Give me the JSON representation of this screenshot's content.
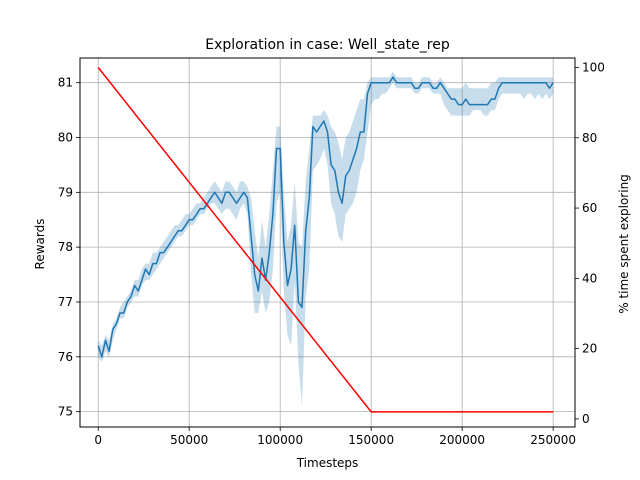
{
  "chart_data": {
    "type": "line",
    "title": "Exploration in case: Well_state_rep",
    "xlabel": "Timesteps",
    "ylabel": "Rewards",
    "y2label": "% time spent exploring",
    "xlim": [
      -10000,
      262000
    ],
    "ylim": [
      74.72,
      81.45
    ],
    "y2lim": [
      -2.3,
      102.7
    ],
    "x_ticks": [
      0,
      50000,
      100000,
      150000,
      200000,
      250000
    ],
    "x_tick_labels": [
      "0",
      "50000",
      "100000",
      "150000",
      "200000",
      "250000"
    ],
    "y_ticks": [
      75,
      76,
      77,
      78,
      79,
      80,
      81
    ],
    "y_tick_labels": [
      "75",
      "76",
      "77",
      "78",
      "79",
      "80",
      "81"
    ],
    "y2_ticks": [
      0,
      20,
      40,
      60,
      80,
      100
    ],
    "y2_tick_labels": [
      "0",
      "20",
      "40",
      "60",
      "80",
      "100"
    ],
    "grid": true,
    "series": [
      {
        "axis": "left",
        "color": "#1f77b4",
        "band_color": "#1f77b4",
        "x": [
          0,
          2000,
          4000,
          6000,
          8000,
          10000,
          12000,
          14000,
          16000,
          18000,
          20000,
          22000,
          24000,
          26000,
          28000,
          30000,
          32000,
          34000,
          36000,
          38000,
          40000,
          42000,
          44000,
          46000,
          48000,
          50000,
          52000,
          54000,
          56000,
          58000,
          60000,
          62000,
          64000,
          66000,
          68000,
          70000,
          72000,
          74000,
          76000,
          78000,
          80000,
          82000,
          84000,
          86000,
          88000,
          90000,
          92000,
          94000,
          96000,
          98000,
          100000,
          102000,
          104000,
          106000,
          108000,
          110000,
          112000,
          114000,
          116000,
          118000,
          120000,
          122000,
          124000,
          126000,
          128000,
          130000,
          132000,
          134000,
          136000,
          138000,
          140000,
          142000,
          144000,
          146000,
          148000,
          150000,
          152000,
          154000,
          156000,
          158000,
          160000,
          162000,
          164000,
          166000,
          168000,
          170000,
          172000,
          174000,
          176000,
          178000,
          180000,
          182000,
          184000,
          186000,
          188000,
          190000,
          192000,
          194000,
          196000,
          198000,
          200000,
          202000,
          204000,
          206000,
          208000,
          210000,
          212000,
          214000,
          216000,
          218000,
          220000,
          222000,
          224000,
          226000,
          228000,
          230000,
          232000,
          234000,
          236000,
          238000,
          240000,
          242000,
          244000,
          246000,
          248000,
          250000
        ],
        "mean": [
          76.2,
          76.0,
          76.3,
          76.1,
          76.5,
          76.6,
          76.8,
          76.8,
          77.0,
          77.1,
          77.3,
          77.2,
          77.4,
          77.6,
          77.5,
          77.7,
          77.7,
          77.9,
          77.9,
          78.0,
          78.1,
          78.2,
          78.3,
          78.3,
          78.4,
          78.5,
          78.5,
          78.6,
          78.7,
          78.7,
          78.8,
          78.9,
          79.0,
          78.9,
          78.8,
          79.0,
          79.0,
          78.9,
          78.8,
          78.9,
          79.0,
          78.9,
          78.2,
          77.5,
          77.2,
          77.8,
          77.4,
          77.9,
          78.6,
          79.8,
          79.8,
          78.1,
          77.3,
          77.6,
          78.4,
          77.0,
          76.9,
          78.3,
          78.9,
          80.2,
          80.1,
          80.2,
          80.3,
          80.1,
          79.5,
          79.4,
          79.0,
          78.8,
          79.3,
          79.4,
          79.6,
          79.8,
          80.1,
          80.1,
          80.8,
          81.0,
          81.0,
          81.0,
          81.0,
          81.0,
          81.0,
          81.1,
          81.0,
          81.0,
          81.0,
          81.0,
          81.0,
          80.9,
          80.9,
          81.0,
          81.0,
          81.0,
          80.9,
          80.9,
          81.0,
          80.9,
          80.8,
          80.7,
          80.7,
          80.6,
          80.6,
          80.7,
          80.6,
          80.6,
          80.6,
          80.6,
          80.6,
          80.6,
          80.7,
          80.7,
          80.9,
          81.0,
          81.0,
          81.0,
          81.0,
          81.0,
          81.0,
          81.0,
          81.0,
          81.0,
          81.0,
          81.0,
          81.0,
          81.0,
          80.9,
          81.0
        ],
        "lower": [
          76.0,
          75.9,
          76.1,
          76.0,
          76.3,
          76.5,
          76.7,
          76.7,
          76.9,
          77.0,
          77.1,
          77.1,
          77.3,
          77.4,
          77.4,
          77.5,
          77.6,
          77.7,
          77.8,
          77.9,
          78.0,
          78.1,
          78.2,
          78.2,
          78.3,
          78.4,
          78.4,
          78.5,
          78.6,
          78.6,
          78.7,
          78.8,
          78.8,
          78.7,
          78.6,
          78.7,
          78.7,
          78.6,
          78.5,
          78.7,
          78.8,
          78.6,
          77.5,
          76.8,
          76.8,
          77.2,
          76.8,
          77.0,
          77.6,
          78.8,
          79.0,
          77.2,
          76.4,
          76.2,
          77.4,
          75.9,
          75.1,
          77.1,
          77.6,
          79.4,
          79.5,
          79.6,
          79.8,
          79.5,
          78.8,
          78.6,
          78.2,
          78.1,
          78.6,
          78.7,
          78.8,
          79.0,
          79.4,
          79.6,
          80.1,
          80.6,
          80.7,
          80.7,
          80.8,
          80.8,
          80.9,
          81.0,
          80.9,
          80.9,
          80.9,
          80.9,
          80.9,
          80.8,
          80.8,
          80.9,
          80.9,
          80.9,
          80.8,
          80.8,
          80.8,
          80.6,
          80.5,
          80.4,
          80.4,
          80.4,
          80.4,
          80.4,
          80.4,
          80.5,
          80.5,
          80.5,
          80.4,
          80.4,
          80.5,
          80.5,
          80.7,
          80.8,
          80.8,
          80.8,
          80.8,
          80.8,
          80.8,
          80.7,
          80.8,
          80.8,
          80.7,
          80.8,
          80.7,
          80.8,
          80.7,
          80.8
        ],
        "upper": [
          76.3,
          76.2,
          76.4,
          76.3,
          76.6,
          76.7,
          76.9,
          77.0,
          77.1,
          77.2,
          77.4,
          77.4,
          77.6,
          77.7,
          77.7,
          77.9,
          77.9,
          78.0,
          78.1,
          78.2,
          78.3,
          78.4,
          78.4,
          78.5,
          78.6,
          78.6,
          78.7,
          78.8,
          78.8,
          78.9,
          79.0,
          79.1,
          79.2,
          79.1,
          79.0,
          79.2,
          79.2,
          79.1,
          79.0,
          79.2,
          79.2,
          79.1,
          78.9,
          78.3,
          77.8,
          78.5,
          78.0,
          78.6,
          79.4,
          80.2,
          80.2,
          79.0,
          78.1,
          78.4,
          79.2,
          78.1,
          78.0,
          79.2,
          79.8,
          80.4,
          80.4,
          80.4,
          80.5,
          80.4,
          80.2,
          80.1,
          79.9,
          79.6,
          80.0,
          80.1,
          80.3,
          80.5,
          80.7,
          80.7,
          81.0,
          81.1,
          81.1,
          81.1,
          81.1,
          81.1,
          81.1,
          81.2,
          81.1,
          81.1,
          81.1,
          81.1,
          81.1,
          81.0,
          81.0,
          81.1,
          81.1,
          81.1,
          81.0,
          81.0,
          81.1,
          81.0,
          80.9,
          80.9,
          80.9,
          80.9,
          80.9,
          81.0,
          80.9,
          80.9,
          80.9,
          80.9,
          80.9,
          80.9,
          81.0,
          81.0,
          81.1,
          81.1,
          81.1,
          81.1,
          81.1,
          81.1,
          81.1,
          81.1,
          81.1,
          81.1,
          81.1,
          81.1,
          81.1,
          81.1,
          81.1,
          81.1
        ]
      },
      {
        "axis": "right",
        "color": "#ff0000",
        "x": [
          0,
          150000,
          250000
        ],
        "y": [
          100,
          2,
          2
        ]
      }
    ]
  }
}
